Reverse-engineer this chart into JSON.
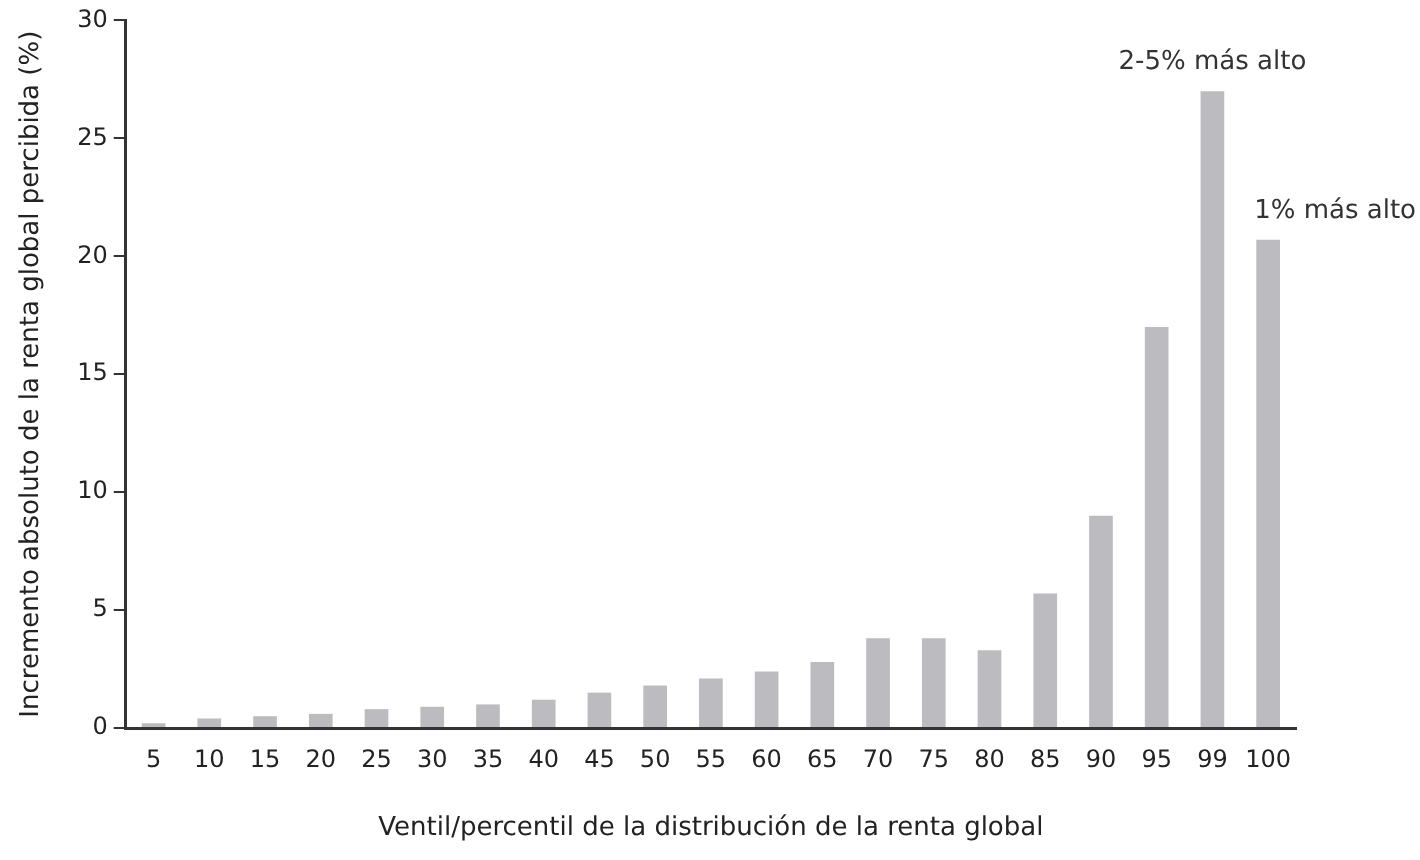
{
  "chart_data": {
    "type": "bar",
    "xlabel": "Ventil/percentil de la distribución de la renta global",
    "ylabel": "Incremento absoluto de la renta global percibida (%)",
    "categories": [
      "5",
      "10",
      "15",
      "20",
      "25",
      "30",
      "35",
      "40",
      "45",
      "50",
      "55",
      "60",
      "65",
      "70",
      "75",
      "80",
      "85",
      "90",
      "95",
      "99",
      "100"
    ],
    "values": [
      0.2,
      0.4,
      0.5,
      0.6,
      0.8,
      0.9,
      1.0,
      1.2,
      1.5,
      1.8,
      2.1,
      2.4,
      2.8,
      3.8,
      3.8,
      3.3,
      5.7,
      9.0,
      17.0,
      27.0,
      20.7
    ],
    "color": "#bcbcc0",
    "ylim": [
      0,
      30
    ],
    "yticks": [
      0,
      5,
      10,
      15,
      20,
      25,
      30
    ],
    "grid": false,
    "legend": false,
    "annotations": [
      {
        "text": "2-5% más alto",
        "x": "99",
        "y": 27.0
      },
      {
        "text": "1% más alto",
        "x": "100",
        "y": 20.7
      }
    ]
  }
}
